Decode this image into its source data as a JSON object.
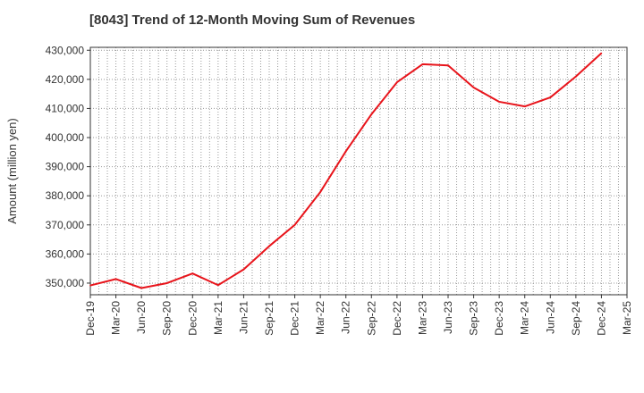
{
  "chart_data": {
    "type": "line",
    "title": "[8043]  Trend of 12-Month Moving Sum of Revenues",
    "xlabel": "",
    "ylabel": "Amount (million yen)",
    "ylim": [
      346000,
      431000
    ],
    "yticks": [
      350000,
      360000,
      370000,
      380000,
      390000,
      400000,
      410000,
      420000,
      430000
    ],
    "ytick_labels": [
      "350,000",
      "360,000",
      "370,000",
      "380,000",
      "390,000",
      "400,000",
      "410,000",
      "420,000",
      "430,000"
    ],
    "categories": [
      "Dec-19",
      "Mar-20",
      "Jun-20",
      "Sep-20",
      "Dec-20",
      "Mar-21",
      "Jun-21",
      "Sep-21",
      "Dec-21",
      "Mar-22",
      "Jun-22",
      "Sep-22",
      "Dec-22",
      "Mar-23",
      "Jun-23",
      "Sep-23",
      "Dec-23",
      "Mar-24",
      "Jun-24",
      "Sep-24",
      "Dec-24",
      "Mar-25"
    ],
    "series": [
      {
        "color": "#e8141b",
        "values": [
          349200,
          351400,
          348300,
          350000,
          353300,
          349300,
          354700,
          362700,
          370000,
          381300,
          395300,
          408000,
          419000,
          425200,
          424800,
          417200,
          412300,
          410700,
          413800,
          421000,
          429000,
          null
        ]
      }
    ],
    "grid": true,
    "legend": "none"
  }
}
